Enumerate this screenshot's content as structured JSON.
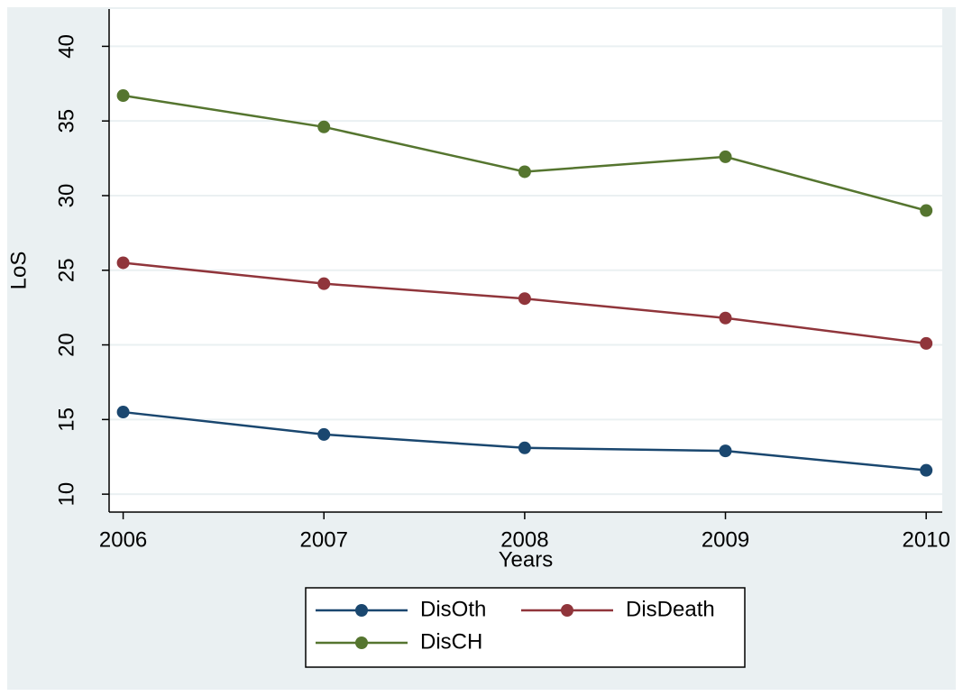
{
  "chart_data": {
    "type": "line",
    "x": [
      2006,
      2007,
      2008,
      2009,
      2010
    ],
    "series": [
      {
        "name": "DisOth",
        "color": "#1a476f",
        "values": [
          15.5,
          14.0,
          13.1,
          12.9,
          11.6
        ]
      },
      {
        "name": "DisDeath",
        "color": "#90353b",
        "values": [
          25.5,
          24.1,
          23.1,
          21.8,
          20.1
        ]
      },
      {
        "name": "DisCH",
        "color": "#55752f",
        "values": [
          36.7,
          34.6,
          31.6,
          32.6,
          29.0
        ]
      }
    ],
    "x_label": "Years",
    "y_label": "LoS",
    "xlim": [
      2005.93,
      2010.08
    ],
    "xticks": [
      2006,
      2007,
      2008,
      2009,
      2010
    ],
    "ylim": [
      8.8,
      42.5
    ],
    "yticks": [
      10,
      15,
      20,
      25,
      30,
      35,
      40
    ],
    "grid": true,
    "legend": "bottom"
  }
}
